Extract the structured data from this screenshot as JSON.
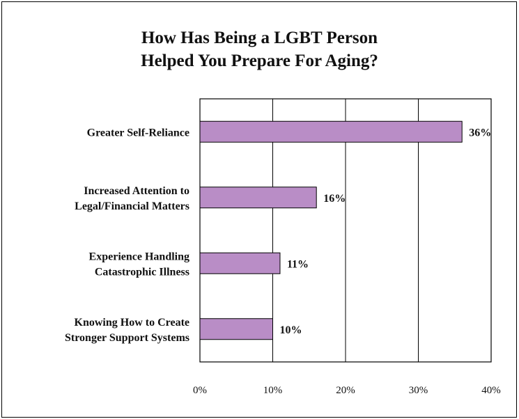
{
  "chart_data": {
    "type": "bar",
    "orientation": "horizontal",
    "title_lines": [
      "How Has Being a LGBT Person",
      "Helped You Prepare For Aging?"
    ],
    "categories": [
      [
        "Greater Self-Reliance"
      ],
      [
        "Increased Attention to",
        "Legal/Financial Matters"
      ],
      [
        "Experience Handling",
        "Catastrophic Illness"
      ],
      [
        "Knowing How to Create",
        "Stronger Support Systems"
      ]
    ],
    "values": [
      36,
      16,
      11,
      10
    ],
    "data_labels": [
      "36%",
      "16%",
      "11%",
      "10%"
    ],
    "xticks": [
      "0%",
      "10%",
      "20%",
      "30%",
      "40%"
    ],
    "xlim": [
      0,
      40
    ],
    "grid": true,
    "bar_color": "#b98dc6"
  }
}
